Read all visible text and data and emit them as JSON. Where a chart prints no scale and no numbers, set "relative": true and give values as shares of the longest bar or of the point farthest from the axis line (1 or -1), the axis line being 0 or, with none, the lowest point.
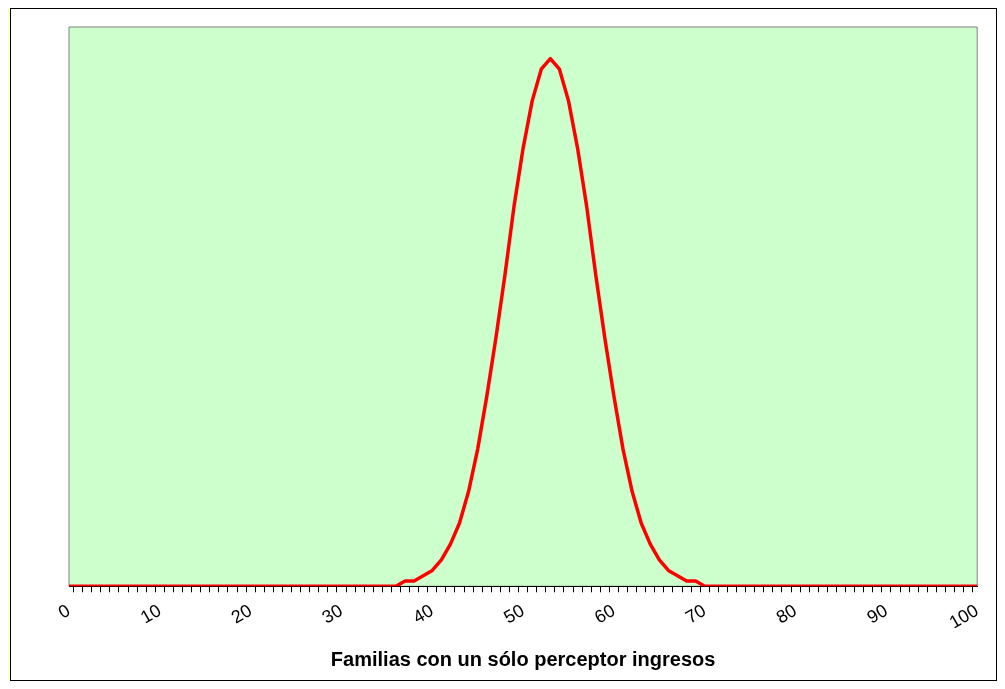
{
  "chart_data": {
    "type": "line",
    "xlabel": "Familias con un sólo perceptor ingresos",
    "relative": true,
    "grid": false,
    "legend": false,
    "marker": "none",
    "line_style": "solid",
    "categories": [
      "0",
      null,
      null,
      null,
      null,
      null,
      null,
      null,
      null,
      null,
      "10",
      null,
      null,
      null,
      null,
      null,
      null,
      null,
      null,
      null,
      "20",
      null,
      null,
      null,
      null,
      null,
      null,
      null,
      null,
      null,
      "30",
      null,
      null,
      null,
      null,
      null,
      null,
      null,
      null,
      null,
      "40",
      null,
      null,
      null,
      null,
      null,
      null,
      null,
      null,
      null,
      "50",
      null,
      null,
      null,
      null,
      null,
      null,
      null,
      null,
      null,
      "60",
      null,
      null,
      null,
      null,
      null,
      null,
      null,
      null,
      null,
      "70",
      null,
      null,
      null,
      null,
      null,
      null,
      null,
      null,
      null,
      "80",
      null,
      null,
      null,
      null,
      null,
      null,
      null,
      null,
      null,
      "90",
      null,
      null,
      null,
      null,
      null,
      null,
      null,
      null,
      null,
      "100"
    ],
    "series": [
      {
        "color": "#ff0000",
        "values": [
          0,
          0,
          0,
          0,
          0,
          0,
          0,
          0,
          0,
          0,
          0,
          0,
          0,
          0,
          0,
          0,
          0,
          0,
          0,
          0,
          0,
          0,
          0,
          0,
          0,
          0,
          0,
          0,
          0,
          0,
          0,
          0,
          0,
          0,
          0,
          0,
          0,
          0.01,
          0.01,
          0.02,
          0.03,
          0.05,
          0.08,
          0.12,
          0.18,
          0.26,
          0.36,
          0.47,
          0.59,
          0.72,
          0.83,
          0.92,
          0.98,
          1,
          0.98,
          0.92,
          0.83,
          0.72,
          0.59,
          0.47,
          0.36,
          0.26,
          0.18,
          0.12,
          0.08,
          0.05,
          0.03,
          0.02,
          0.01,
          0.01,
          0,
          0,
          0,
          0,
          0,
          0,
          0,
          0,
          0,
          0,
          0,
          0,
          0,
          0,
          0,
          0,
          0,
          0,
          0,
          0,
          0,
          0,
          0,
          0,
          0,
          0,
          0,
          0,
          0,
          0,
          0
        ]
      }
    ]
  }
}
